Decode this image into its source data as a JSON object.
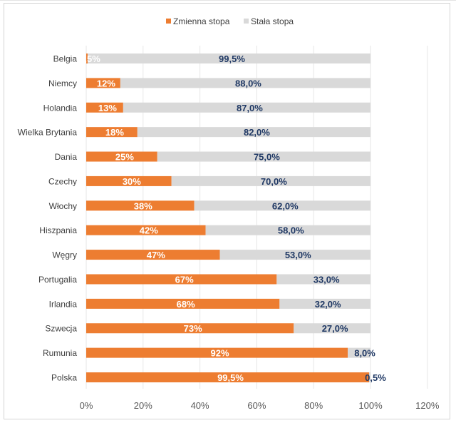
{
  "chart_data": {
    "type": "bar",
    "orientation": "horizontal",
    "stacked": true,
    "categories": [
      "Belgia",
      "Niemcy",
      "Holandia",
      "Wielka Brytania",
      "Dania",
      "Czechy",
      "Włochy",
      "Hiszpania",
      "Węgry",
      "Portugalia",
      "Irlandia",
      "Szwecja",
      "Rumunia",
      "Polska"
    ],
    "series": [
      {
        "name": "Zmienna stopa",
        "color": "#ed7d31",
        "label_color": "#ffffff",
        "values": [
          0.5,
          12,
          13,
          18,
          25,
          30,
          38,
          42,
          47,
          67,
          68,
          73,
          92,
          99.5
        ],
        "labels": [
          "0,5%",
          "12%",
          "13%",
          "18%",
          "25%",
          "30%",
          "38%",
          "42%",
          "47%",
          "67%",
          "68%",
          "73%",
          "92%",
          "99,5%"
        ]
      },
      {
        "name": "Stała stopa",
        "color": "#d9d9d9",
        "label_color": "#1f3864",
        "values": [
          99.5,
          88,
          87,
          82,
          75,
          70,
          62,
          58,
          53,
          33,
          32,
          27,
          8,
          0.5
        ],
        "labels": [
          "99,5%",
          "88,0%",
          "87,0%",
          "82,0%",
          "75,0%",
          "70,0%",
          "62,0%",
          "58,0%",
          "53,0%",
          "33,0%",
          "32,0%",
          "27,0%",
          "8,0%",
          "0,5%"
        ]
      }
    ],
    "xlim": [
      0,
      120
    ],
    "xticks": [
      "0%",
      "20%",
      "40%",
      "60%",
      "80%",
      "100%",
      "120%"
    ],
    "grid": true,
    "legend_position": "top"
  }
}
